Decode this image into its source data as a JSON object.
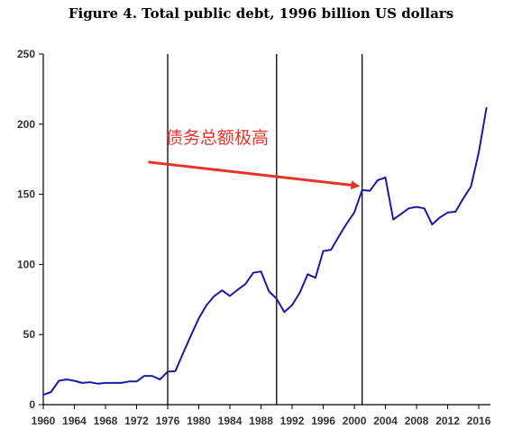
{
  "chart_data": {
    "type": "line",
    "title": "Figure 4. Total public debt, 1996 billion US dollars",
    "xlabel": "",
    "ylabel": "",
    "xlim": [
      1960,
      2017.5
    ],
    "ylim": [
      0,
      250
    ],
    "grid": false,
    "x_ticks": [
      1960,
      1964,
      1968,
      1972,
      1976,
      1980,
      1984,
      1988,
      1992,
      1996,
      2000,
      2004,
      2008,
      2012,
      2016
    ],
    "x_tick_labels": [
      "1960",
      "1964",
      "1968",
      "1972",
      "1976",
      "1980",
      "1984",
      "1988",
      "1992",
      "1996",
      "2000",
      "2004",
      "2008",
      "2012",
      "2016"
    ],
    "y_ticks": [
      0,
      50,
      100,
      150,
      200,
      250
    ],
    "y_tick_labels": [
      "0",
      "50",
      "100",
      "150",
      "200",
      "250"
    ],
    "series": [
      {
        "color": "#1a1aa6",
        "x": [
          1960,
          1961,
          1962,
          1963,
          1964,
          1965,
          1966,
          1967,
          1968,
          1969,
          1970,
          1971,
          1972,
          1973,
          1974,
          1975,
          1976,
          1977,
          1978,
          1979,
          1980,
          1981,
          1982,
          1983,
          1984,
          1985,
          1986,
          1987,
          1988,
          1989,
          1990,
          1991,
          1992,
          1993,
          1994,
          1995,
          1996,
          1997,
          1998,
          1999,
          2000,
          2001,
          2002,
          2003,
          2004,
          2005,
          2006,
          2007,
          2008,
          2009,
          2010,
          2011,
          2012,
          2013,
          2014,
          2015,
          2016,
          2017
        ],
        "y": [
          7,
          9,
          17,
          18,
          17,
          15.5,
          16,
          15,
          15.5,
          15.5,
          15.5,
          16.5,
          16.5,
          20.5,
          20.5,
          18,
          23.5,
          24,
          37,
          49.5,
          61.5,
          71,
          77.5,
          81.5,
          77.5,
          82,
          86,
          94,
          95,
          81,
          75.5,
          66,
          71,
          80,
          93,
          90.5,
          109.5,
          110.5,
          120,
          129,
          137,
          153,
          152.5,
          160,
          162,
          132,
          136,
          140,
          141,
          140,
          128.5,
          133.5,
          137,
          137.5,
          147,
          155.5,
          180,
          212
        ]
      }
    ],
    "vertical_lines": [
      1976,
      1990,
      2001
    ],
    "annotation": {
      "text": "债务总额极高",
      "color": "#e8332a",
      "arrow_from": [
        1973.5,
        173
      ],
      "arrow_to": [
        2000.5,
        156
      ]
    }
  }
}
